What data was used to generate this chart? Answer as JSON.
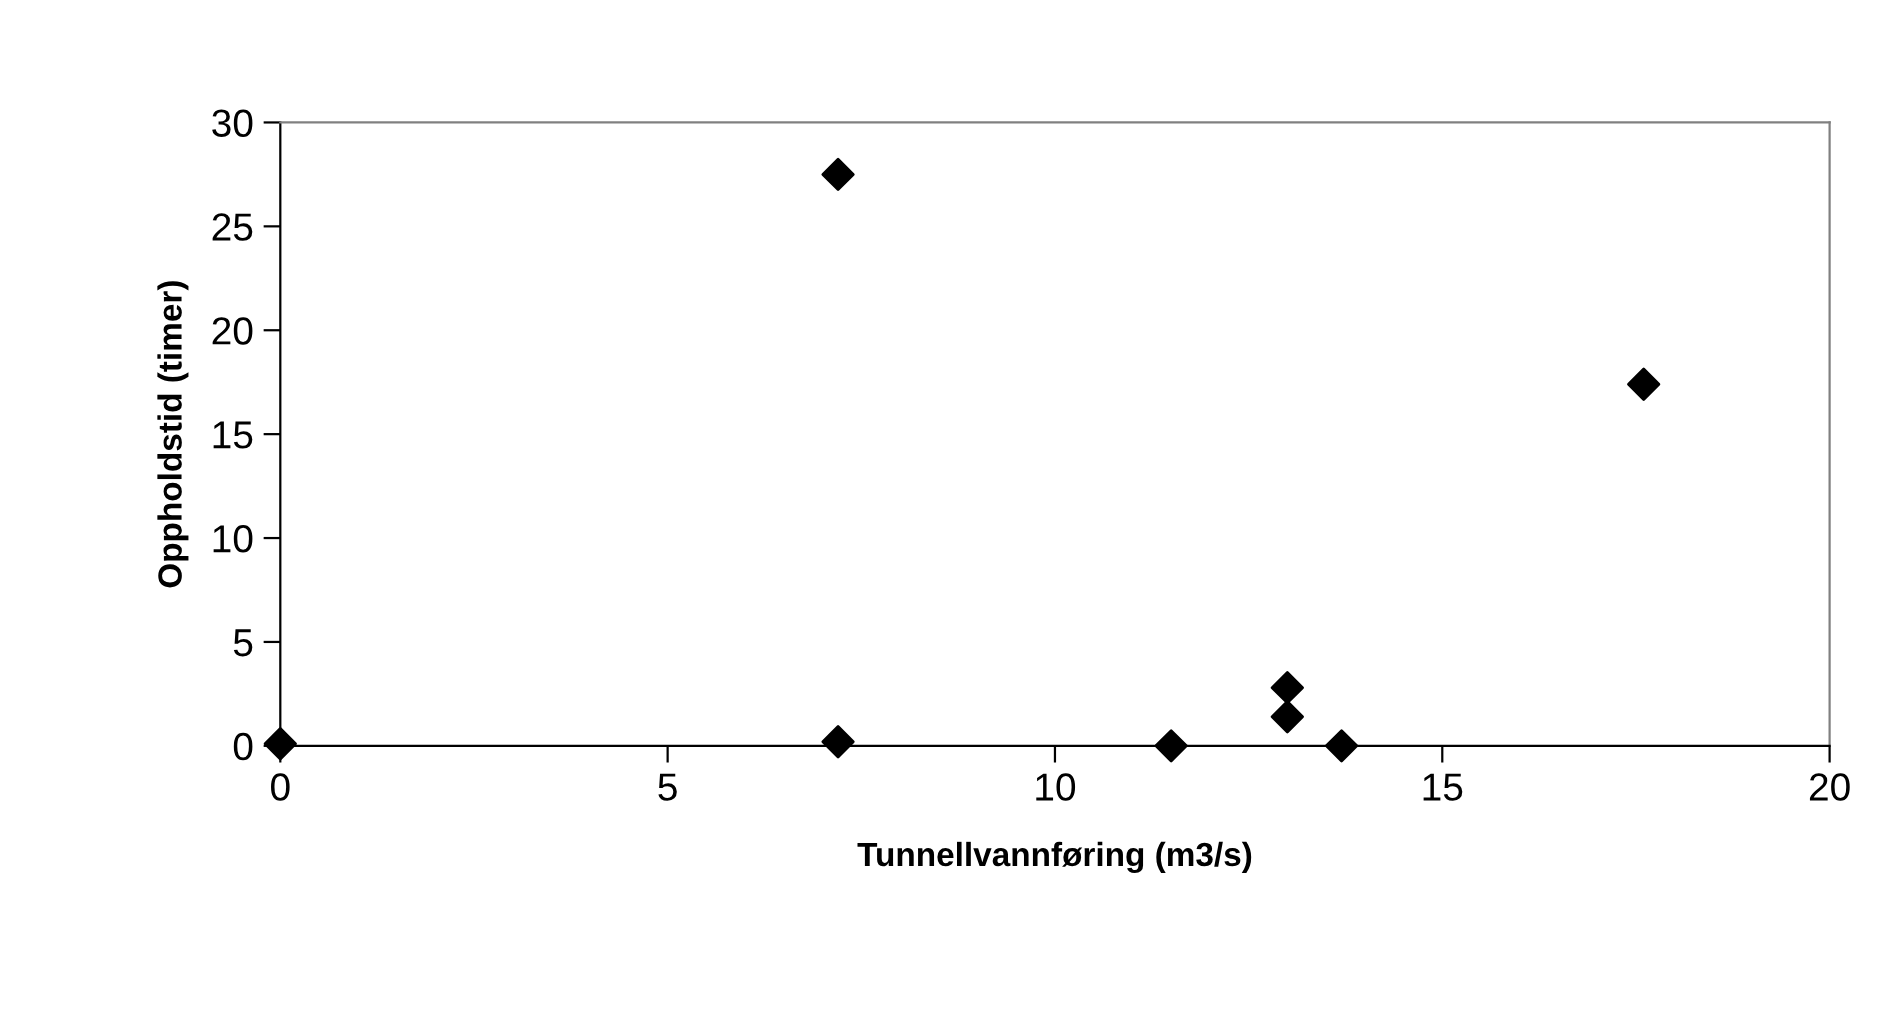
{
  "chart_data": {
    "type": "scatter",
    "xlabel": "Tunnellvannføring (m3/s)",
    "ylabel": "Oppholdstid (timer)",
    "x": [
      0,
      7.2,
      7.2,
      11.5,
      13.0,
      13.0,
      13.7,
      17.6
    ],
    "values": [
      0.1,
      27.5,
      0.2,
      0,
      2.8,
      1.4,
      0,
      17.4
    ],
    "color": "#000000",
    "marker": "diamond",
    "xlim": [
      0,
      20
    ],
    "xticks": [
      0,
      5,
      10,
      15,
      20
    ],
    "ylim": [
      0,
      30
    ],
    "yticks": [
      0,
      5,
      10,
      15,
      20,
      25,
      30
    ],
    "grid": false,
    "legend": false
  }
}
